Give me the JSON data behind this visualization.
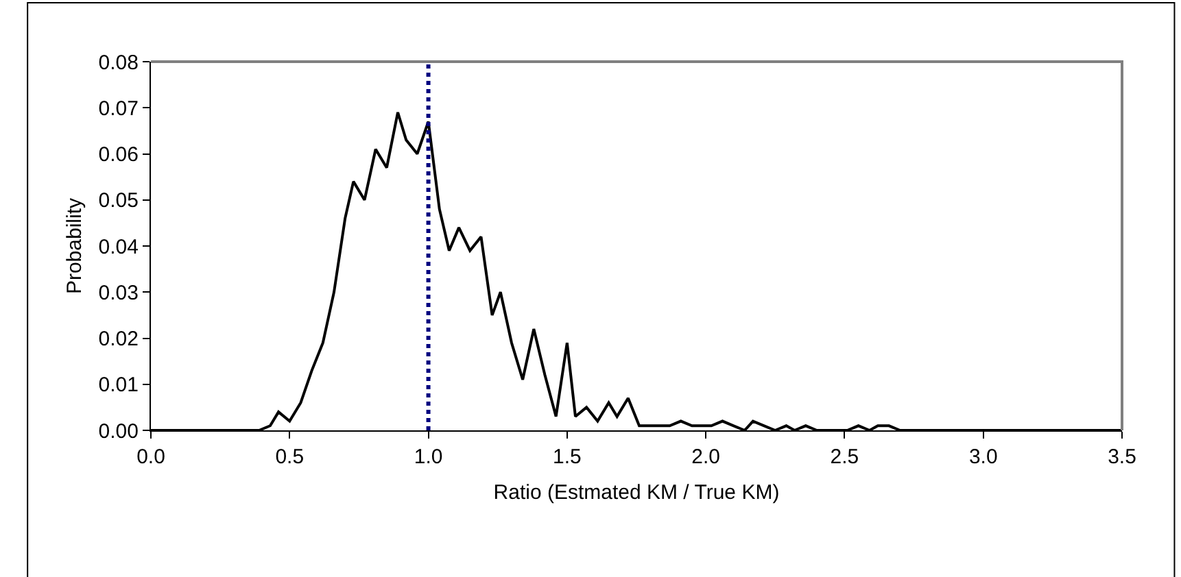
{
  "chart_data": {
    "type": "line",
    "xlabel": "Ratio (Estmated KM / True KM)",
    "ylabel": "Probability",
    "x": [
      0,
      0.39,
      0.43,
      0.46,
      0.5,
      0.54,
      0.58,
      0.62,
      0.66,
      0.7,
      0.73,
      0.77,
      0.81,
      0.85,
      0.89,
      0.92,
      0.96,
      1.0,
      1.04,
      1.075,
      1.11,
      1.15,
      1.19,
      1.23,
      1.26,
      1.3,
      1.34,
      1.38,
      1.42,
      1.46,
      1.5,
      1.53,
      1.57,
      1.61,
      1.65,
      1.68,
      1.72,
      1.76,
      1.8,
      1.84,
      1.87,
      1.91,
      1.95,
      1.99,
      2.02,
      2.06,
      2.1,
      2.14,
      2.17,
      2.21,
      2.25,
      2.29,
      2.32,
      2.36,
      2.4,
      2.44,
      2.47,
      2.51,
      2.55,
      2.59,
      2.62,
      2.66,
      2.7,
      3.5
    ],
    "series": [
      {
        "color": "#000000",
        "values": [
          0,
          0,
          0.001,
          0.004,
          0.002,
          0.006,
          0.013,
          0.019,
          0.03,
          0.046,
          0.054,
          0.05,
          0.061,
          0.057,
          0.069,
          0.063,
          0.06,
          0.067,
          0.048,
          0.039,
          0.044,
          0.039,
          0.042,
          0.025,
          0.03,
          0.019,
          0.011,
          0.022,
          0.012,
          0.003,
          0.019,
          0.003,
          0.005,
          0.002,
          0.006,
          0.003,
          0.007,
          0.001,
          0.001,
          0.001,
          0.001,
          0.002,
          0.001,
          0.001,
          0.001,
          0.002,
          0.001,
          0,
          0.002,
          0.001,
          0,
          0.001,
          0,
          0.001,
          0,
          0,
          0,
          0,
          0.001,
          0,
          0.001,
          0.001,
          0,
          0
        ]
      }
    ],
    "xlim": [
      0,
      3.5
    ],
    "xticks": [
      {
        "value": 0,
        "label": "0.0"
      },
      {
        "value": 0.5,
        "label": "0.5"
      },
      {
        "value": 1,
        "label": "1.0"
      },
      {
        "value": 1.5,
        "label": "1.5"
      },
      {
        "value": 2,
        "label": "2.0"
      },
      {
        "value": 2.5,
        "label": "2.5"
      },
      {
        "value": 3,
        "label": "3.0"
      },
      {
        "value": 3.5,
        "label": "3.5"
      }
    ],
    "ylim": [
      0,
      0.08
    ],
    "yticks": [
      {
        "value": 0,
        "label": "0.00"
      },
      {
        "value": 0.01,
        "label": "0.01"
      },
      {
        "value": 0.02,
        "label": "0.02"
      },
      {
        "value": 0.03,
        "label": "0.03"
      },
      {
        "value": 0.04,
        "label": "0.04"
      },
      {
        "value": 0.05,
        "label": "0.05"
      },
      {
        "value": 0.06,
        "label": "0.06"
      },
      {
        "value": 0.07,
        "label": "0.07"
      },
      {
        "value": 0.08,
        "label": "0.08"
      }
    ],
    "ref_lines": [
      {
        "axis": "x",
        "value": 1,
        "color": "#000080",
        "line_style": "dotted"
      }
    ],
    "grid": false,
    "marker": "none",
    "line_style": "solid"
  }
}
